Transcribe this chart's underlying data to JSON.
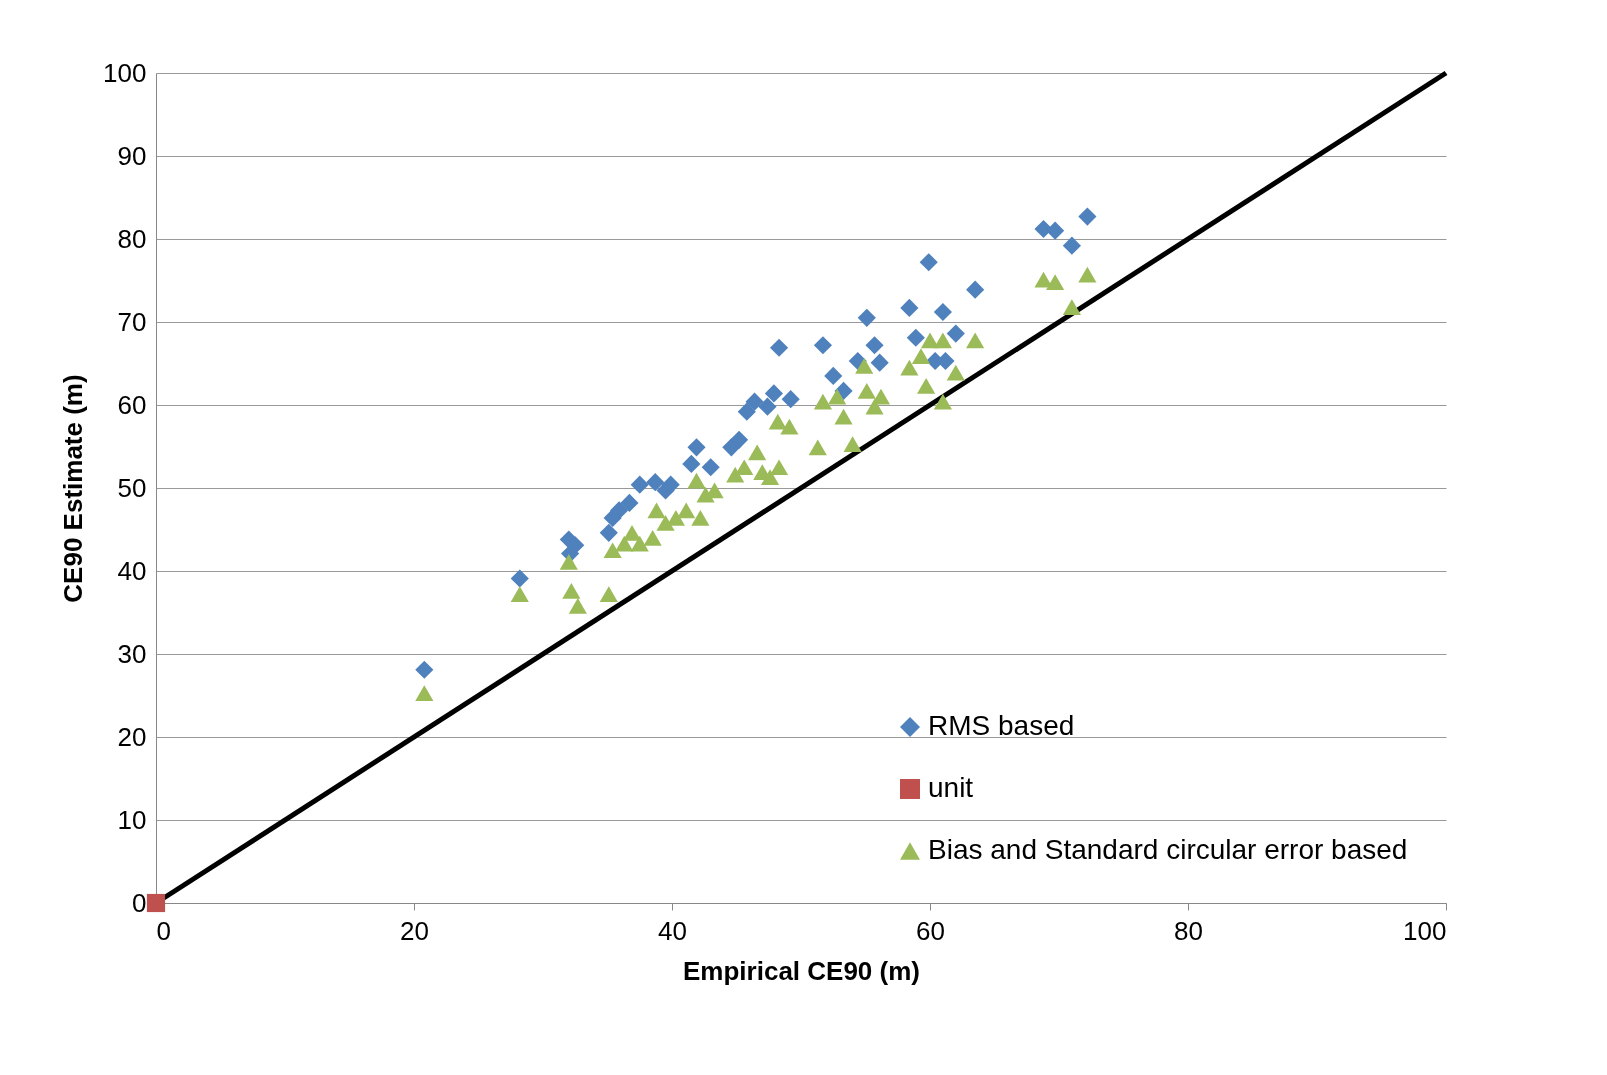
{
  "chart_data": {
    "type": "scatter",
    "xlabel": "Empirical  CE90 (m)",
    "ylabel": "CE90 Estimate (m)",
    "xlim": [
      0,
      100
    ],
    "xticks": [
      0,
      20,
      40,
      60,
      80,
      100
    ],
    "ylim": [
      0,
      100
    ],
    "yticks": [
      0,
      10,
      20,
      30,
      40,
      50,
      60,
      70,
      80,
      90,
      100
    ],
    "grid": "y",
    "legend": "bottom right",
    "series": [
      {
        "name": "RMS based",
        "color": "#4f81bd",
        "marker": "diamond",
        "x": [
          20.8,
          28.2,
          32.0,
          32.5,
          32.1,
          35.1,
          35.4,
          35.9,
          36.7,
          37.5,
          38.7,
          39.5,
          39.9,
          41.9,
          41.5,
          43.0,
          44.6,
          45.2,
          45.8,
          46.4,
          47.4,
          47.9,
          48.3,
          49.2,
          51.7,
          52.5,
          53.3,
          54.4,
          55.1,
          55.7,
          56.1,
          58.4,
          58.9,
          59.9,
          60.4,
          61.0,
          61.2,
          62.0,
          63.5,
          68.8,
          69.7,
          71.0,
          72.2
        ],
        "values": [
          28.1,
          39.1,
          43.8,
          43.1,
          42.1,
          44.6,
          46.4,
          47.3,
          48.2,
          50.4,
          50.7,
          49.7,
          50.4,
          54.9,
          52.9,
          52.5,
          54.9,
          55.8,
          59.2,
          60.4,
          59.8,
          61.4,
          66.9,
          60.7,
          67.2,
          63.5,
          61.7,
          65.3,
          70.5,
          67.2,
          65.1,
          71.7,
          68.1,
          77.2,
          65.3,
          71.2,
          65.3,
          68.6,
          73.9,
          81.2,
          81.0,
          79.2,
          82.7
        ]
      },
      {
        "name": "unit",
        "color": "#c0504d",
        "marker": "square",
        "x": [
          0
        ],
        "values": [
          0
        ]
      },
      {
        "name": "Bias and Standard circular error based",
        "color": "#9bbb59",
        "marker": "triangle",
        "x": [
          20.8,
          28.2,
          32.0,
          32.2,
          32.7,
          35.1,
          35.4,
          36.3,
          36.9,
          37.5,
          38.5,
          38.8,
          39.5,
          40.3,
          41.1,
          41.9,
          42.2,
          42.6,
          43.3,
          44.9,
          45.6,
          46.6,
          47.0,
          47.6,
          48.2,
          48.3,
          49.1,
          51.3,
          51.7,
          52.8,
          53.3,
          54.0,
          54.9,
          55.1,
          55.7,
          56.2,
          58.4,
          59.3,
          59.7,
          60.0,
          61.0,
          61.0,
          62.0,
          63.5,
          68.8,
          69.7,
          71.0,
          72.2
        ],
        "values": [
          25.3,
          37.2,
          41.1,
          37.6,
          35.8,
          37.2,
          42.5,
          43.3,
          44.6,
          43.3,
          44.0,
          47.3,
          45.8,
          46.4,
          47.3,
          50.9,
          46.4,
          49.2,
          49.7,
          51.6,
          52.5,
          54.3,
          51.9,
          51.3,
          58.0,
          52.5,
          57.4,
          54.9,
          60.4,
          61.0,
          58.6,
          55.3,
          64.7,
          61.7,
          59.8,
          61.0,
          64.5,
          65.9,
          62.3,
          67.8,
          67.8,
          60.4,
          63.9,
          67.8,
          75.1,
          74.8,
          71.8,
          75.7
        ]
      },
      {
        "type": "line",
        "color": "#000000",
        "marker": "none",
        "x": [
          0,
          100
        ],
        "values": [
          0,
          100
        ]
      }
    ]
  }
}
